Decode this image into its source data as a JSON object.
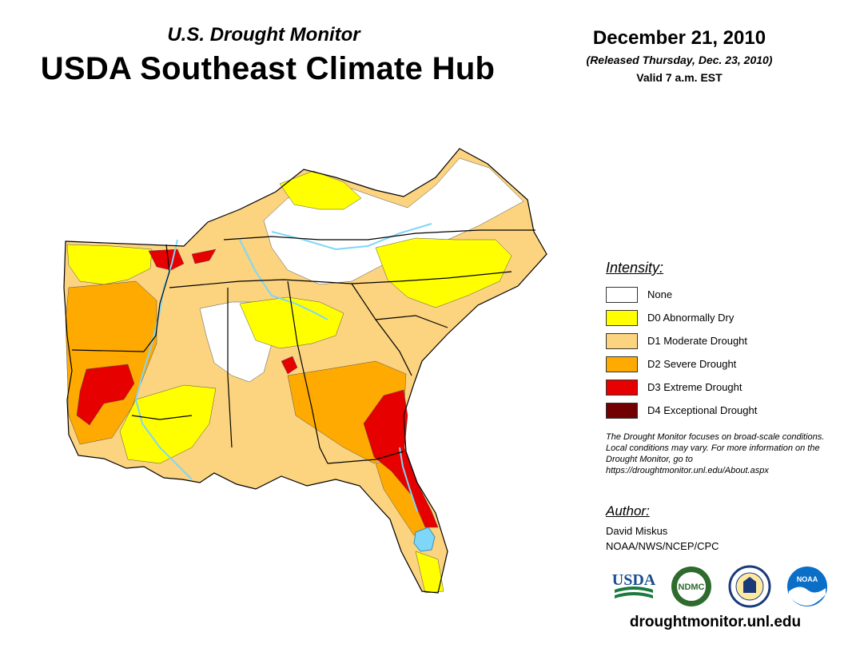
{
  "header": {
    "subtitle": "U.S. Drought Monitor",
    "title": "USDA Southeast Climate Hub",
    "date": "December 21, 2010",
    "released": "(Released Thursday, Dec. 23, 2010)",
    "valid": "Valid 7 a.m. EST"
  },
  "legend": {
    "title": "Intensity:",
    "items": [
      {
        "label": "None",
        "color": "#ffffff"
      },
      {
        "label": "D0 Abnormally Dry",
        "color": "#ffff00"
      },
      {
        "label": "D1 Moderate Drought",
        "color": "#fcd37f"
      },
      {
        "label": "D2 Severe Drought",
        "color": "#ffaa00"
      },
      {
        "label": "D3 Extreme Drought",
        "color": "#e60000"
      },
      {
        "label": "D4 Exceptional Drought",
        "color": "#730000"
      }
    ]
  },
  "note": "The Drought Monitor focuses on broad-scale conditions. Local conditions may vary. For more information on the Drought Monitor, go to https://droughtmonitor.unl.edu/About.aspx",
  "author": {
    "title": "Author:",
    "name": "David Miskus",
    "org": "NOAA/NWS/NCEP/CPC"
  },
  "logos": {
    "usda": "USDA",
    "ndmc": "NDMC",
    "noaa": "NOAA"
  },
  "website": "droughtmonitor.unl.edu",
  "map_colors": {
    "none": "#ffffff",
    "d0": "#ffff00",
    "d1": "#fcd37f",
    "d2": "#ffaa00",
    "d3": "#e60000",
    "water": "#7fd7f7",
    "border": "#000000"
  }
}
